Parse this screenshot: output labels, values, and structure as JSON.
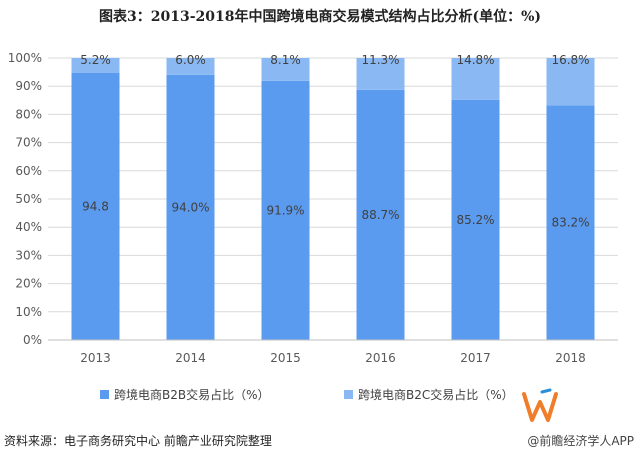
{
  "header": {
    "title": "图表3：2013-2018年中国跨境电商交易模式结构占比分析(单位：%)"
  },
  "footer": {
    "source": "资料来源：电子商务研究中心 前瞻产业研究院整理",
    "brand": "@前瞻经济学人APP"
  },
  "colors": {
    "b2b": "#5b9bef",
    "b2c": "#8ab8f3",
    "grid": "#d9d9d9",
    "axis": "#bfbfbf"
  },
  "chart_data": {
    "type": "bar",
    "stacked": true,
    "categories": [
      "2013",
      "2014",
      "2015",
      "2016",
      "2017",
      "2018"
    ],
    "series": [
      {
        "name": "跨境电商B2B交易占比（%）",
        "values": [
          94.8,
          94.0,
          91.9,
          88.7,
          85.2,
          83.2
        ],
        "labels": [
          "94.8",
          "94.0%",
          "91.9%",
          "88.7%",
          "85.2%",
          "83.2%"
        ]
      },
      {
        "name": "跨境电商B2C交易占比（%）",
        "values": [
          5.2,
          6.0,
          8.1,
          11.3,
          14.8,
          16.8
        ],
        "labels": [
          "5.2%",
          "6.0%",
          "8.1%",
          "11.3%",
          "14.8%",
          "16.8%"
        ]
      }
    ],
    "yticks": [
      "0%",
      "10%",
      "20%",
      "30%",
      "40%",
      "50%",
      "60%",
      "70%",
      "80%",
      "90%",
      "100%"
    ],
    "ylim": [
      0,
      100
    ],
    "grid": true,
    "legend": "bottom"
  }
}
